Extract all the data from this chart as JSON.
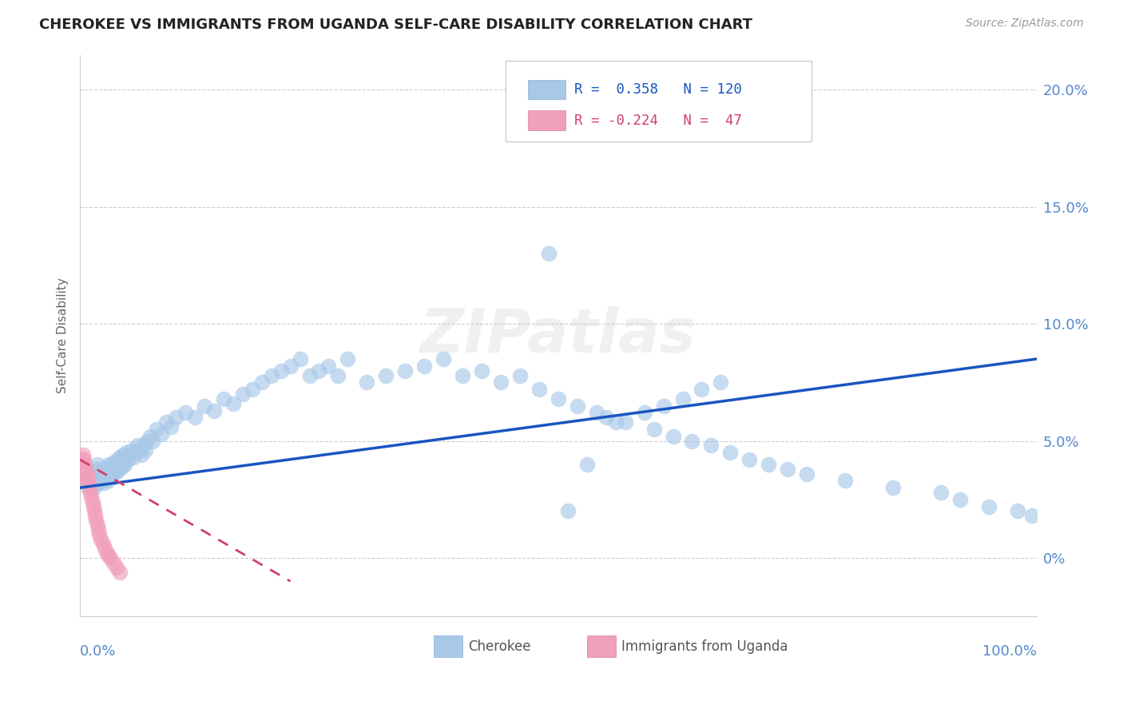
{
  "title": "CHEROKEE VS IMMIGRANTS FROM UGANDA SELF-CARE DISABILITY CORRELATION CHART",
  "source": "Source: ZipAtlas.com",
  "ylabel": "Self-Care Disability",
  "xlim": [
    0.0,
    1.0
  ],
  "ylim": [
    -0.025,
    0.215
  ],
  "ytick_values": [
    0.0,
    0.05,
    0.1,
    0.15,
    0.2
  ],
  "ytick_labels": [
    "0%",
    "5.0%",
    "10.0%",
    "15.0%",
    "20.0%"
  ],
  "cherokee_color": "#a8c8e8",
  "uganda_color": "#f0a0b8",
  "trendline_blue": "#1a55c0",
  "trendline_pink": "#d04070",
  "grid_color": "#cccccc",
  "bg_color": "#ffffff",
  "title_color": "#222222",
  "axis_label_color": "#5588cc",
  "cherokee_x": [
    0.005,
    0.008,
    0.01,
    0.012,
    0.013,
    0.015,
    0.015,
    0.016,
    0.017,
    0.018,
    0.018,
    0.019,
    0.02,
    0.02,
    0.021,
    0.022,
    0.023,
    0.024,
    0.025,
    0.025,
    0.026,
    0.027,
    0.028,
    0.029,
    0.03,
    0.03,
    0.031,
    0.032,
    0.033,
    0.034,
    0.035,
    0.036,
    0.037,
    0.038,
    0.039,
    0.04,
    0.041,
    0.042,
    0.043,
    0.044,
    0.045,
    0.046,
    0.047,
    0.048,
    0.05,
    0.052,
    0.054,
    0.056,
    0.058,
    0.06,
    0.062,
    0.064,
    0.066,
    0.068,
    0.07,
    0.073,
    0.076,
    0.08,
    0.085,
    0.09,
    0.095,
    0.1,
    0.11,
    0.12,
    0.13,
    0.14,
    0.15,
    0.16,
    0.17,
    0.18,
    0.19,
    0.2,
    0.21,
    0.22,
    0.23,
    0.24,
    0.25,
    0.26,
    0.27,
    0.28,
    0.3,
    0.32,
    0.34,
    0.36,
    0.38,
    0.4,
    0.42,
    0.44,
    0.46,
    0.48,
    0.5,
    0.52,
    0.54,
    0.56,
    0.6,
    0.62,
    0.64,
    0.66,
    0.68,
    0.7,
    0.72,
    0.74,
    0.76,
    0.8,
    0.85,
    0.9,
    0.92,
    0.95,
    0.98,
    0.995,
    0.49,
    0.51,
    0.53,
    0.55,
    0.57,
    0.59,
    0.61,
    0.63,
    0.65,
    0.67
  ],
  "cherokee_y": [
    0.033,
    0.03,
    0.035,
    0.032,
    0.038,
    0.03,
    0.036,
    0.034,
    0.032,
    0.036,
    0.04,
    0.034,
    0.032,
    0.038,
    0.035,
    0.033,
    0.037,
    0.035,
    0.032,
    0.038,
    0.036,
    0.034,
    0.038,
    0.036,
    0.033,
    0.04,
    0.037,
    0.035,
    0.04,
    0.038,
    0.036,
    0.041,
    0.039,
    0.037,
    0.042,
    0.04,
    0.038,
    0.043,
    0.041,
    0.039,
    0.044,
    0.042,
    0.04,
    0.045,
    0.042,
    0.044,
    0.046,
    0.043,
    0.045,
    0.048,
    0.046,
    0.044,
    0.048,
    0.046,
    0.05,
    0.052,
    0.05,
    0.055,
    0.053,
    0.058,
    0.056,
    0.06,
    0.062,
    0.06,
    0.065,
    0.063,
    0.068,
    0.066,
    0.07,
    0.072,
    0.075,
    0.078,
    0.08,
    0.082,
    0.085,
    0.078,
    0.08,
    0.082,
    0.078,
    0.085,
    0.075,
    0.078,
    0.08,
    0.082,
    0.085,
    0.078,
    0.08,
    0.075,
    0.078,
    0.072,
    0.068,
    0.065,
    0.062,
    0.058,
    0.055,
    0.052,
    0.05,
    0.048,
    0.045,
    0.042,
    0.04,
    0.038,
    0.036,
    0.033,
    0.03,
    0.028,
    0.025,
    0.022,
    0.02,
    0.018,
    0.13,
    0.02,
    0.04,
    0.06,
    0.058,
    0.062,
    0.065,
    0.068,
    0.072,
    0.075
  ],
  "uganda_x": [
    0.001,
    0.001,
    0.001,
    0.002,
    0.002,
    0.002,
    0.002,
    0.003,
    0.003,
    0.003,
    0.003,
    0.003,
    0.004,
    0.004,
    0.004,
    0.004,
    0.005,
    0.005,
    0.005,
    0.006,
    0.006,
    0.006,
    0.007,
    0.007,
    0.008,
    0.008,
    0.009,
    0.01,
    0.011,
    0.012,
    0.013,
    0.014,
    0.015,
    0.016,
    0.017,
    0.018,
    0.019,
    0.02,
    0.022,
    0.024,
    0.026,
    0.028,
    0.03,
    0.032,
    0.035,
    0.038,
    0.042
  ],
  "uganda_y": [
    0.04,
    0.038,
    0.042,
    0.04,
    0.038,
    0.036,
    0.042,
    0.04,
    0.038,
    0.036,
    0.042,
    0.044,
    0.04,
    0.038,
    0.036,
    0.042,
    0.038,
    0.036,
    0.04,
    0.038,
    0.036,
    0.034,
    0.036,
    0.034,
    0.034,
    0.032,
    0.032,
    0.03,
    0.028,
    0.026,
    0.024,
    0.022,
    0.02,
    0.018,
    0.016,
    0.014,
    0.012,
    0.01,
    0.008,
    0.006,
    0.004,
    0.002,
    0.001,
    0.0,
    -0.002,
    -0.004,
    -0.006
  ],
  "blue_trend_x": [
    0.0,
    1.0
  ],
  "blue_trend_y": [
    0.03,
    0.085
  ],
  "pink_trend_x": [
    0.0,
    0.22
  ],
  "pink_trend_y": [
    0.042,
    -0.01
  ]
}
